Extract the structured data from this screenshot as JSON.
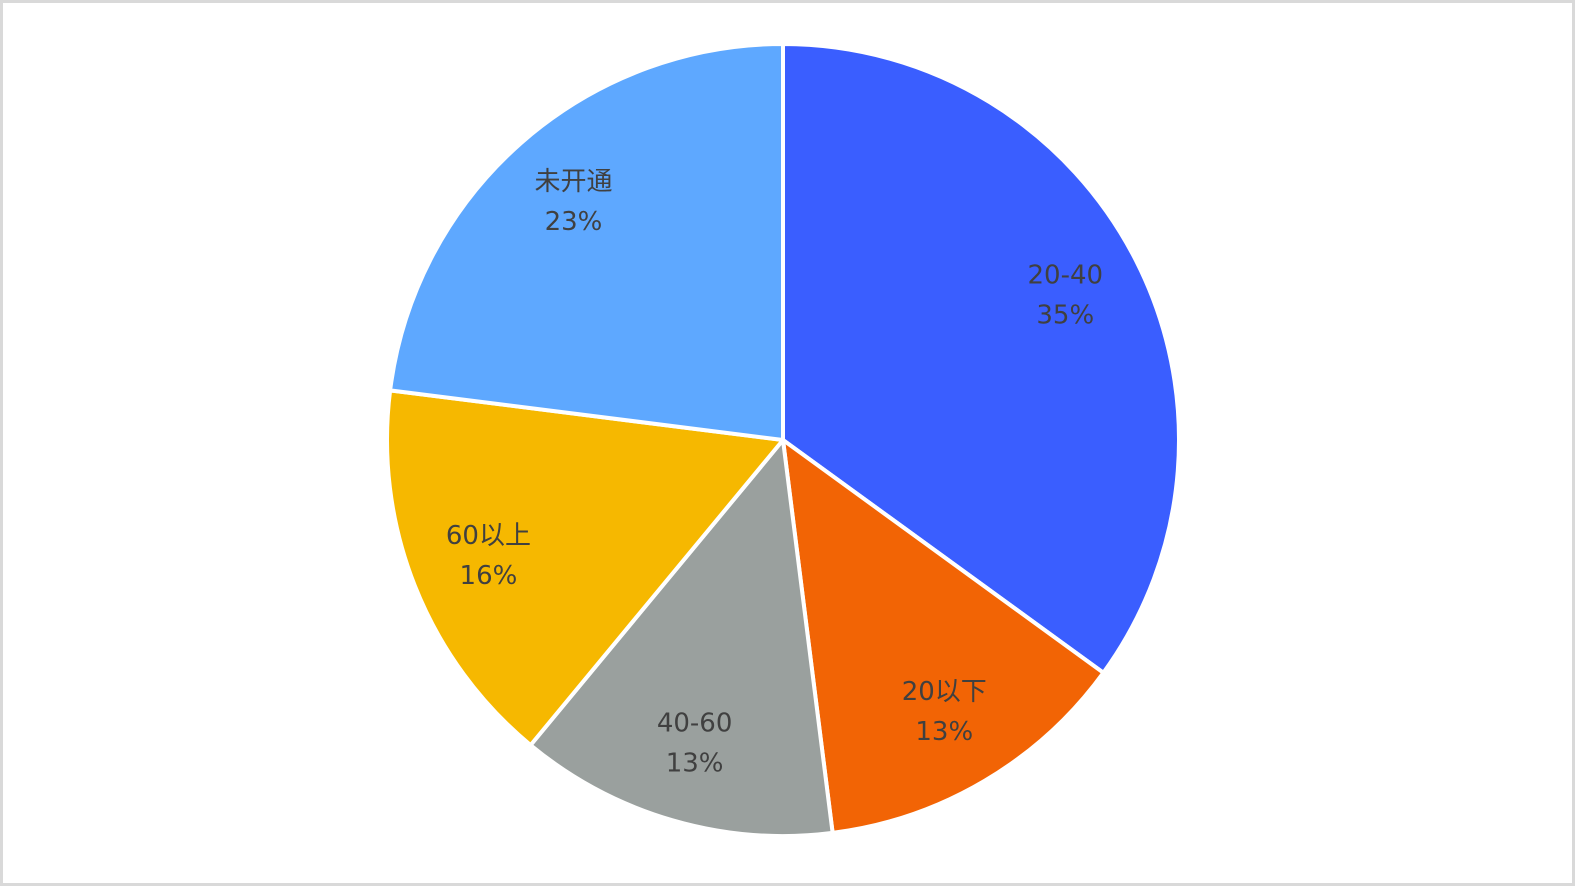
{
  "chart_data": {
    "type": "pie",
    "categories": [
      "20-40",
      "20以下",
      "40-60",
      "60以上",
      "未开通"
    ],
    "values": [
      35,
      13,
      13,
      16,
      23
    ],
    "value_labels": [
      "35%",
      "13%",
      "13%",
      "16%",
      "23%"
    ],
    "colors": [
      "#3a5eff",
      "#f26405",
      "#9aa09e",
      "#f6b800",
      "#5ea8ff"
    ]
  }
}
